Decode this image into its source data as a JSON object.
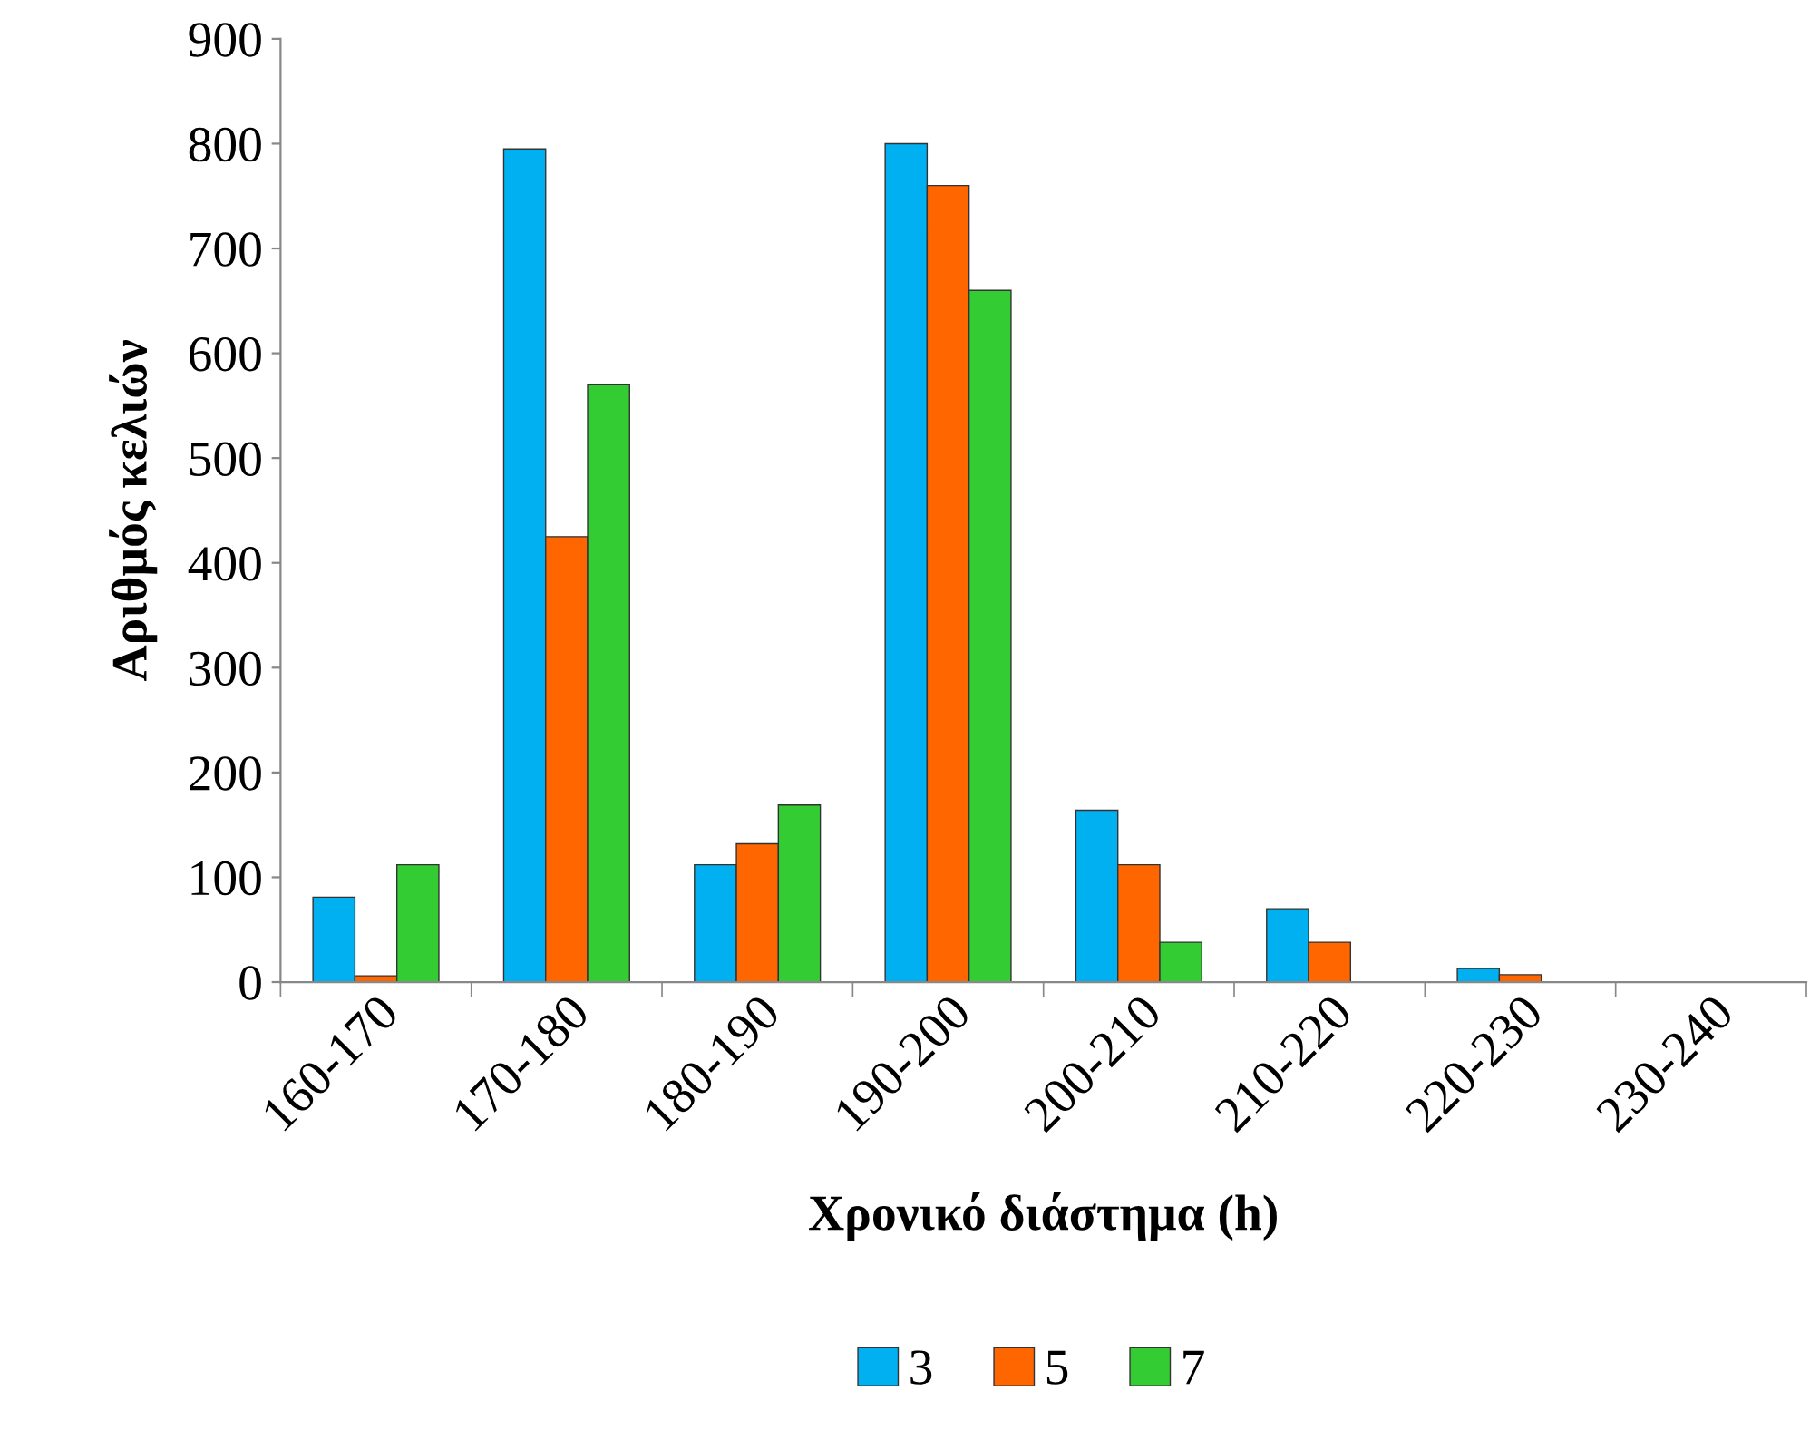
{
  "chart_data": {
    "type": "bar",
    "xlabel": "Χρονικό διάστημα (h)",
    "ylabel": "Αριθμός κελιών",
    "categories": [
      "160-170",
      "170-180",
      "180-190",
      "190-200",
      "200-210",
      "210-220",
      "220-230",
      "230-240"
    ],
    "series": [
      {
        "name": "3",
        "color": "#00b0f0",
        "values": [
          81,
          795,
          112,
          800,
          164,
          70,
          13,
          null
        ]
      },
      {
        "name": "5",
        "color": "#ff6600",
        "values": [
          6,
          425,
          132,
          760,
          112,
          38,
          7,
          null
        ]
      },
      {
        "name": "7",
        "color": "#33cc33",
        "values": [
          112,
          570,
          169,
          660,
          38,
          null,
          null,
          null
        ]
      }
    ],
    "ylim": [
      0,
      900
    ],
    "yticks": [
      0,
      100,
      200,
      300,
      400,
      500,
      600,
      700,
      800,
      900
    ],
    "grid": false,
    "legend": "bottom"
  }
}
